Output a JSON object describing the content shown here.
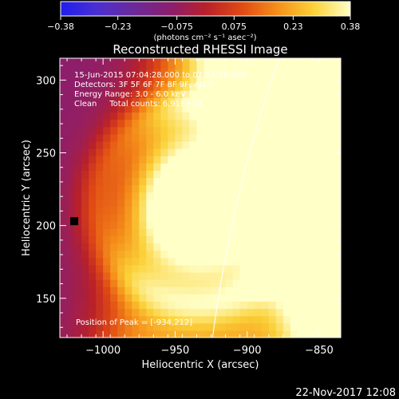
{
  "chart_data": {
    "type": "heatmap",
    "title": "Reconstructed RHESSI Image",
    "xlabel": "Heliocentric X (arcsec)",
    "ylabel": "Heliocentric Y (arcsec)",
    "xlim": [
      -1030,
      -835
    ],
    "ylim": [
      123,
      315
    ],
    "x_ticks": [
      {
        "value": -1000,
        "label": "−1000"
      },
      {
        "value": -950,
        "label": "−950"
      },
      {
        "value": -900,
        "label": "−900"
      },
      {
        "value": -850,
        "label": "−850"
      }
    ],
    "y_ticks": [
      {
        "value": 150,
        "label": "150"
      },
      {
        "value": 200,
        "label": "200"
      },
      {
        "value": 250,
        "label": "250"
      },
      {
        "value": 300,
        "label": "300"
      }
    ],
    "colorbar": {
      "range": [
        -0.38,
        0.38
      ],
      "tick_labels": [
        "−0.38",
        "−0.23",
        "−0.075",
        "0.075",
        "0.23",
        "0.38"
      ],
      "tick_values": [
        -0.38,
        -0.23,
        -0.075,
        0.075,
        0.23,
        0.38
      ],
      "units_label": "(photons cm⁻² s⁻¹ asec⁻²)",
      "colors": [
        "#1e1ef0",
        "#4b2fcf",
        "#6a2a9a",
        "#8a1e70",
        "#b8202a",
        "#e04a14",
        "#f5901a",
        "#fbd23a",
        "#ffffc8"
      ]
    },
    "annotations": {
      "line1": "15-Jun-2015 07:04:28.000 to 07:14:28.000",
      "line2": "Detectors: 3F 5F 6F 7F 8F 9F, Att 0",
      "line3": "Energy Range: 3.0 - 6.0 keV",
      "line4": "Clean     Total counts: 6.91E+04",
      "peak": "Position of Peak = [-934,212]"
    },
    "peak": {
      "x": -934,
      "y": 212
    },
    "marker": {
      "x": -1020,
      "y": 203
    },
    "grid": false
  },
  "footer_timestamp": "22-Nov-2017 12:08"
}
